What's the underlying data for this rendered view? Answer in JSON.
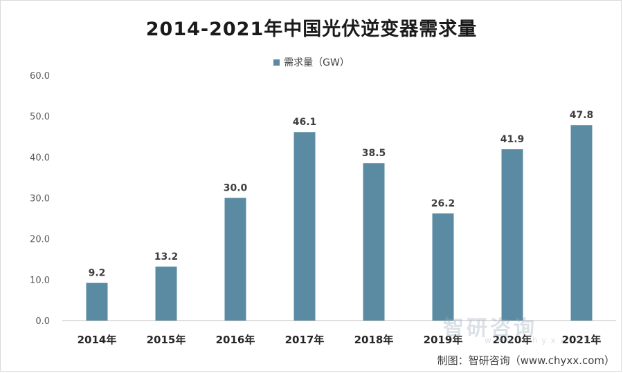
{
  "chart_data": {
    "type": "bar",
    "title": "2014-2021年中国光伏逆变器需求量",
    "categories": [
      "2014年",
      "2015年",
      "2016年",
      "2017年",
      "2018年",
      "2019年",
      "2020年",
      "2021年"
    ],
    "series": [
      {
        "name": "需求量（GW）",
        "values": [
          9.2,
          13.2,
          30.0,
          46.1,
          38.5,
          26.2,
          41.9,
          47.8
        ],
        "labels": [
          "9.2",
          "13.2",
          "30.0",
          "46.1",
          "38.5",
          "26.2",
          "41.9",
          "47.8"
        ],
        "color": "#5a8ba3"
      }
    ],
    "ylim": [
      0,
      60
    ],
    "yticks": [
      "0.0",
      "10.0",
      "20.0",
      "30.0",
      "40.0",
      "50.0",
      "60.0"
    ],
    "grid": false,
    "legend_position": "top"
  },
  "watermark": {
    "text": "智研咨询",
    "sub": "www.chyxx.com"
  },
  "source": "制图：智研咨询（www.chyxx.com）"
}
